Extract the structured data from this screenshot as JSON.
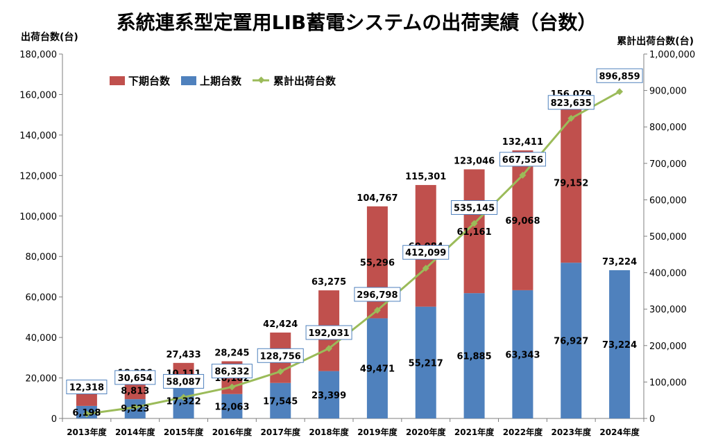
{
  "chart_data": {
    "type": "bar",
    "title": "系統連系型定置用LIB蓄電システムの出荷実績（台数）",
    "ylabel_left": "出荷台数(台)",
    "ylabel_right": "累計出荷台数(台)",
    "categories": [
      "2013年度",
      "2014年度",
      "2015年度",
      "2016年度",
      "2017年度",
      "2018年度",
      "2019年度",
      "2020年度",
      "2021年度",
      "2022年度",
      "2023年度",
      "2024年度"
    ],
    "series": [
      {
        "name": "上期台数",
        "type": "bar",
        "axis": "left",
        "color": "#4f81bd",
        "values": [
          6198,
          9523,
          17322,
          12063,
          17545,
          23399,
          49471,
          55217,
          61885,
          63343,
          76927,
          73224
        ]
      },
      {
        "name": "下期台数",
        "type": "bar",
        "axis": "left",
        "color": "#c0504d",
        "values": [
          6120,
          8813,
          10111,
          16182,
          24879,
          39876,
          55296,
          60084,
          61161,
          69068,
          79152,
          null
        ]
      },
      {
        "name": "累計出荷台数",
        "type": "line",
        "axis": "right",
        "color": "#9bbb59",
        "values": [
          12318,
          30654,
          58087,
          86332,
          128756,
          192031,
          296798,
          412099,
          535145,
          667556,
          823635,
          896859
        ]
      }
    ],
    "totals": [
      12318,
      18336,
      27433,
      28245,
      42424,
      63275,
      104767,
      115301,
      123046,
      132411,
      156079,
      73224
    ],
    "y_left": {
      "min": 0,
      "max": 180000,
      "step": 20000,
      "ticks": [
        "0",
        "20,000",
        "40,000",
        "60,000",
        "80,000",
        "100,000",
        "120,000",
        "140,000",
        "160,000",
        "180,000"
      ]
    },
    "y_right": {
      "min": 0,
      "max": 1000000,
      "step": 100000,
      "ticks": [
        "0",
        "100,000",
        "200,000",
        "300,000",
        "400,000",
        "500,000",
        "600,000",
        "700,000",
        "800,000",
        "900,000",
        "1,000,000"
      ]
    },
    "legend_position": "top-left",
    "grid": false
  }
}
